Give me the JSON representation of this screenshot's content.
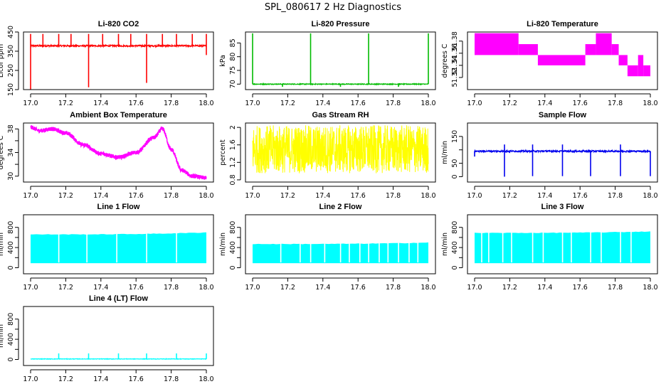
{
  "figure": {
    "title": "SPL_080617  2 Hz Diagnostics"
  },
  "chart_data": [
    {
      "id": "co2",
      "type": "line",
      "title": "Li-820 CO2",
      "ylabel": "Licor ppm",
      "color": "#ff0000",
      "pattern": "spiky",
      "xlim": [
        17.0,
        18.0
      ],
      "ylim": [
        150,
        450
      ],
      "yticks": [
        150,
        250,
        350,
        450
      ],
      "xticks": [
        "17.0",
        "17.2",
        "17.4",
        "17.6",
        "17.8",
        "18.0"
      ],
      "base": 378,
      "noise": 4,
      "spikes_up": [
        17.0,
        17.07,
        17.16,
        17.23,
        17.33,
        17.41,
        17.5,
        17.57,
        17.66,
        17.75,
        17.83,
        17.92,
        18.0
      ],
      "spike_top": 440,
      "spikes_down": [
        [
          17.33,
          162
        ],
        [
          17.66,
          185
        ],
        [
          17.0,
          150
        ],
        [
          18.0,
          330
        ]
      ]
    },
    {
      "id": "pressure",
      "type": "line",
      "title": "Li-820 Pressure",
      "ylabel": "kPa",
      "color": "#00bb00",
      "pattern": "spiky",
      "xlim": [
        17.0,
        18.0
      ],
      "ylim": [
        68,
        89
      ],
      "yticks": [
        70,
        75,
        80,
        85
      ],
      "xticks": [
        "17.0",
        "17.2",
        "17.4",
        "17.6",
        "17.8",
        "18.0"
      ],
      "base": 70.0,
      "noise": 0.15,
      "spikes_up": [
        17.0,
        17.33,
        17.66,
        18.0
      ],
      "spike_top": 88.5,
      "spikes_down": [
        [
          17.17,
          69.0
        ],
        [
          17.5,
          69.0
        ],
        [
          17.83,
          69.0
        ]
      ]
    },
    {
      "id": "licor_temp",
      "type": "step",
      "title": "Li-820 Temperature",
      "ylabel": "degrees C",
      "color": "#ff00ff",
      "pattern": "step",
      "xlim": [
        17.0,
        18.0
      ],
      "ylim": [
        51.3,
        51.395
      ],
      "yticks": [
        51.32,
        51.34,
        51.36,
        51.38
      ],
      "ytick_labels": [
        "51.32",
        "51.34",
        "51.36",
        "51.38"
      ],
      "xticks": [
        "17.0",
        "17.2",
        "17.4",
        "17.6",
        "17.8",
        "18.0"
      ],
      "segments": [
        [
          17.0,
          17.25,
          51.357,
          51.393
        ],
        [
          17.25,
          17.36,
          51.357,
          51.375
        ],
        [
          17.36,
          17.63,
          51.34,
          51.357
        ],
        [
          17.63,
          17.69,
          51.357,
          51.375
        ],
        [
          17.69,
          17.78,
          51.357,
          51.393
        ],
        [
          17.78,
          17.82,
          51.357,
          51.375
        ],
        [
          17.82,
          17.87,
          51.34,
          51.357
        ],
        [
          17.87,
          17.93,
          51.322,
          51.34
        ],
        [
          17.93,
          17.96,
          51.322,
          51.357
        ],
        [
          17.96,
          18.0,
          51.322,
          51.34
        ]
      ]
    },
    {
      "id": "box_temp",
      "type": "line",
      "title": "Ambient Box Temperature",
      "ylabel": "degrees C",
      "color": "#ff00ff",
      "pattern": "curve",
      "xlim": [
        17.0,
        18.0
      ],
      "ylim": [
        29,
        39
      ],
      "yticks": [
        30,
        32,
        34,
        36,
        38
      ],
      "ytick_labels": [
        "30",
        "",
        "34",
        "",
        "38"
      ],
      "xticks": [
        "17.0",
        "17.2",
        "17.4",
        "17.6",
        "17.8",
        "18.0"
      ],
      "noise": 0.35,
      "points": [
        [
          17.0,
          38.3
        ],
        [
          17.05,
          37.7
        ],
        [
          17.12,
          38.0
        ],
        [
          17.2,
          37.3
        ],
        [
          17.3,
          35.3
        ],
        [
          17.4,
          33.8
        ],
        [
          17.5,
          33.2
        ],
        [
          17.6,
          34.0
        ],
        [
          17.7,
          36.5
        ],
        [
          17.75,
          38.0
        ],
        [
          17.8,
          34.5
        ],
        [
          17.86,
          31.0
        ],
        [
          17.92,
          30.0
        ],
        [
          18.0,
          29.7
        ]
      ]
    },
    {
      "id": "rh",
      "type": "line",
      "title": "Gas Stream RH",
      "ylabel": "percent",
      "color": "#ffff00",
      "pattern": "band",
      "xlim": [
        17.0,
        18.0
      ],
      "ylim": [
        0.75,
        2.1
      ],
      "yticks": [
        0.8,
        1.2,
        1.6,
        2.0
      ],
      "xticks": [
        "17.0",
        "17.2",
        "17.4",
        "17.6",
        "17.8",
        "18.0"
      ],
      "band": [
        0.95,
        2.05
      ]
    },
    {
      "id": "sample_flow",
      "type": "line",
      "title": "Sample Flow",
      "ylabel": "ml/min",
      "color": "#0000ee",
      "pattern": "spiky",
      "xlim": [
        17.0,
        18.0
      ],
      "ylim": [
        -20,
        200
      ],
      "yticks": [
        0,
        50,
        100,
        150
      ],
      "ytick_labels": [
        "0",
        "50",
        "",
        "150"
      ],
      "xticks": [
        "17.0",
        "17.2",
        "17.4",
        "17.6",
        "17.8",
        "18.0"
      ],
      "base": 95,
      "noise": 3,
      "spikes_up": [
        17.17,
        17.33,
        17.5,
        17.83
      ],
      "spike_top": 120,
      "spikes_down": [
        [
          17.0,
          75
        ],
        [
          17.17,
          0
        ],
        [
          17.33,
          2
        ],
        [
          17.5,
          2
        ],
        [
          17.66,
          2
        ],
        [
          17.83,
          2
        ],
        [
          18.0,
          2
        ]
      ]
    },
    {
      "id": "line1",
      "type": "line",
      "title": "Line 1 Flow",
      "ylabel": "ml/min",
      "color": "#00ffff",
      "pattern": "bandgaps",
      "xlim": [
        17.0,
        18.0
      ],
      "ylim": [
        -120,
        1050
      ],
      "yticks": [
        0,
        200,
        400,
        600,
        800
      ],
      "ytick_labels": [
        "0",
        "",
        "400",
        "",
        "800"
      ],
      "xticks": [
        "17.0",
        "17.2",
        "17.4",
        "17.6",
        "17.8",
        "18.0"
      ],
      "band": [
        90,
        660
      ],
      "band_top_end": 700,
      "gaps": [
        17.16,
        17.32,
        17.49,
        17.66,
        17.83
      ]
    },
    {
      "id": "line2",
      "type": "line",
      "title": "Line 2 Flow",
      "ylabel": "ml/min",
      "color": "#00ffff",
      "pattern": "bandgaps",
      "xlim": [
        17.0,
        18.0
      ],
      "ylim": [
        -120,
        1050
      ],
      "yticks": [
        0,
        200,
        400,
        600,
        800
      ],
      "ytick_labels": [
        "0",
        "",
        "400",
        "",
        "800"
      ],
      "xticks": [
        "17.0",
        "17.2",
        "17.4",
        "17.6",
        "17.8",
        "18.0"
      ],
      "band": [
        90,
        470
      ],
      "band_top_end": 500,
      "gaps": [
        17.16,
        17.27,
        17.33,
        17.41,
        17.5,
        17.55,
        17.61,
        17.66,
        17.72,
        17.77,
        17.83,
        17.89,
        17.94
      ]
    },
    {
      "id": "line3",
      "type": "line",
      "title": "Line 3 Flow",
      "ylabel": "ml/min",
      "color": "#00ffff",
      "pattern": "bandgaps",
      "xlim": [
        17.0,
        18.0
      ],
      "ylim": [
        -120,
        1050
      ],
      "yticks": [
        0,
        200,
        400,
        600,
        800
      ],
      "ytick_labels": [
        "0",
        "",
        "400",
        "",
        "800"
      ],
      "xticks": [
        "17.0",
        "17.2",
        "17.4",
        "17.6",
        "17.8",
        "18.0"
      ],
      "band": [
        90,
        690
      ],
      "band_top_end": 720,
      "gaps": [
        17.04,
        17.08,
        17.16,
        17.21,
        17.33,
        17.39,
        17.5,
        17.55,
        17.66,
        17.72,
        17.83,
        17.89
      ]
    },
    {
      "id": "line4",
      "type": "line",
      "title": "Line 4 (LT) Flow",
      "ylabel": "ml/min",
      "color": "#00ffff",
      "pattern": "spiky",
      "xlim": [
        17.0,
        18.0
      ],
      "ylim": [
        -120,
        1050
      ],
      "yticks": [
        0,
        200,
        400,
        600,
        800
      ],
      "ytick_labels": [
        "0",
        "",
        "400",
        "",
        "800"
      ],
      "xticks": [
        "17.0",
        "17.2",
        "17.4",
        "17.6",
        "17.8",
        "18.0"
      ],
      "base": 10,
      "noise": 5,
      "spikes_up": [
        17.16,
        17.33,
        17.5,
        17.66,
        17.83,
        18.0
      ],
      "spike_top": 120,
      "spikes_down": []
    }
  ]
}
